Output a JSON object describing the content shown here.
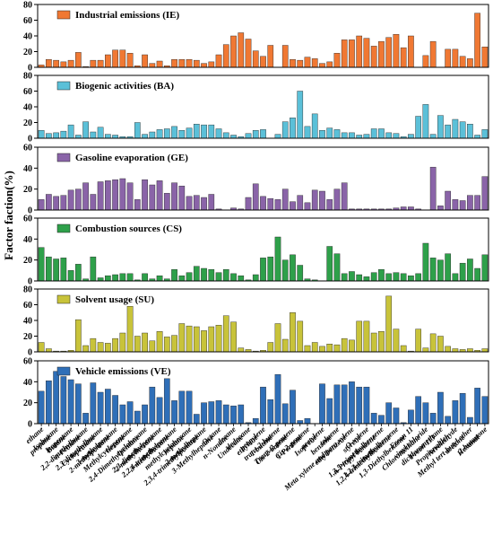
{
  "y_label": "Factor faction(%)",
  "chart_data": [
    {
      "type": "bar",
      "title": "Industrial emissions (IE)",
      "color": "#f07833",
      "ylim": [
        0,
        80
      ],
      "yticks": [
        0,
        20,
        40,
        60,
        80
      ],
      "values": [
        3,
        10,
        9,
        7,
        9,
        19,
        1,
        9,
        9,
        16,
        22,
        22,
        18,
        2,
        16,
        5,
        8,
        2,
        10,
        10,
        10,
        9,
        5,
        7,
        16,
        29,
        40,
        44,
        36,
        21,
        14,
        28,
        0,
        28,
        10,
        9,
        13,
        11,
        5,
        7,
        18,
        35,
        35,
        40,
        37,
        27,
        33,
        38,
        42,
        25,
        40,
        0,
        15,
        33,
        0,
        23,
        23,
        14,
        11,
        69,
        26
      ]
    },
    {
      "type": "bar",
      "title": "Biogenic activities (BA)",
      "color": "#5bc0d8",
      "ylim": [
        0,
        80
      ],
      "yticks": [
        0,
        20,
        40,
        60,
        80
      ],
      "values": [
        10,
        6,
        7,
        9,
        17,
        4,
        21,
        8,
        14,
        5,
        4,
        2,
        2,
        20,
        5,
        8,
        11,
        12,
        15,
        10,
        13,
        18,
        17,
        17,
        12,
        7,
        4,
        2,
        6,
        10,
        11,
        0,
        5,
        21,
        26,
        60,
        15,
        31,
        10,
        13,
        11,
        7,
        7,
        4,
        5,
        12,
        12,
        7,
        6,
        2,
        5,
        28,
        43,
        5,
        29,
        17,
        24,
        21,
        18,
        4,
        11
      ]
    },
    {
      "type": "bar",
      "title": "Gasoline evaporation (GE)",
      "color": "#8a64a8",
      "ylim": [
        0,
        60
      ],
      "yticks": [
        0,
        20,
        40,
        60
      ],
      "values": [
        10,
        15,
        13,
        14,
        19,
        20,
        26,
        15,
        27,
        28,
        29,
        30,
        26,
        10,
        29,
        24,
        28,
        16,
        26,
        23,
        13,
        14,
        12,
        15,
        1,
        0,
        2,
        1,
        12,
        25,
        13,
        11,
        10,
        20,
        8,
        14,
        7,
        19,
        18,
        10,
        20,
        26,
        1,
        1,
        1,
        1,
        1,
        1,
        2,
        3,
        3,
        1,
        0,
        41,
        4,
        18,
        10,
        9,
        14,
        14,
        32
      ]
    },
    {
      "type": "bar",
      "title": "Combustion sources (CS)",
      "color": "#2ea04a",
      "ylim": [
        0,
        60
      ],
      "yticks": [
        0,
        20,
        40,
        60
      ],
      "values": [
        32,
        23,
        21,
        22,
        10,
        16,
        2,
        23,
        3,
        5,
        6,
        7,
        7,
        1,
        7,
        2,
        5,
        2,
        11,
        5,
        8,
        14,
        12,
        11,
        8,
        11,
        7,
        5,
        1,
        6,
        22,
        23,
        42,
        20,
        25,
        15,
        2,
        1,
        0,
        33,
        26,
        7,
        9,
        6,
        4,
        8,
        11,
        7,
        8,
        7,
        5,
        7,
        36,
        22,
        20,
        26,
        7,
        17,
        21,
        12,
        25
      ]
    },
    {
      "type": "bar",
      "title": "Solvent usage (SU)",
      "color": "#c8c33a",
      "ylim": [
        0,
        80
      ],
      "yticks": [
        0,
        20,
        40,
        60,
        80
      ],
      "values": [
        12,
        4,
        1,
        1,
        2,
        41,
        8,
        17,
        12,
        11,
        17,
        24,
        58,
        20,
        24,
        14,
        26,
        19,
        21,
        36,
        33,
        32,
        27,
        32,
        34,
        46,
        38,
        5,
        3,
        1,
        2,
        12,
        36,
        16,
        50,
        39,
        8,
        12,
        7,
        10,
        9,
        17,
        15,
        39,
        39,
        24,
        26,
        71,
        29,
        8,
        1,
        29,
        5,
        23,
        20,
        7,
        4,
        3,
        4,
        2,
        4
      ]
    },
    {
      "type": "bar",
      "title": "Vehicle emissions (VE)",
      "color": "#2f6fb8",
      "ylim": [
        0,
        60
      ],
      "yticks": [
        0,
        20,
        40,
        60
      ],
      "values": [
        31,
        41,
        50,
        45,
        42,
        38,
        10,
        39,
        30,
        33,
        27,
        18,
        21,
        12,
        18,
        35,
        25,
        43,
        22,
        31,
        31,
        9,
        20,
        21,
        22,
        18,
        17,
        18,
        1,
        5,
        35,
        23,
        47,
        19,
        32,
        3,
        5,
        0,
        38,
        24,
        37,
        37,
        40,
        35,
        35,
        10,
        8,
        20,
        15,
        1,
        13,
        26,
        20,
        10,
        30,
        7,
        22,
        29,
        6,
        34,
        26
      ],
      "categories": [
        "ethane",
        "propane",
        "Isobutane",
        "Butane",
        "Isopentane",
        "n-Pentane",
        "2,2-dimethylbutane",
        "Cyclopentane",
        "2,3-dimethylbutane",
        "2-methylpentane",
        "3-methylpentane",
        "hexane",
        "Methylcyclopentane",
        "2,4-Dimethylpentane",
        "cyclohexane",
        "2-methylhexane",
        "2,3-dimethylpentane",
        "3-methylhexane",
        "2,2,4-trimethylpentane",
        "heptane",
        "methylcyclohexane",
        "2,3,4-trimethylpentane",
        "2-methylheptane",
        "3-Methylheptane",
        "Octane",
        "n-Nonane",
        "decane",
        "Undecane",
        "dodecane",
        "ethylene",
        "propylene",
        "1-butene",
        "trans-2-butene",
        "Cis-2-butene",
        "Trans-2-pentene",
        "1-Pentene",
        "Cis-2-pentene",
        "Isoprene",
        "acetylene",
        "benzene",
        "toluene",
        "ethylbenzene",
        "Meta xylene and para xylene",
        "styrene",
        "O-xylene",
        "n-Propyl benzene",
        "1,3,5-trimethylbenzene",
        "1,2,4-trimethylbenzene",
        "1,2,3-trimethylbenzene",
        "1,3-Diethylbenzene",
        "Freon 11",
        "Chloromethane",
        "vinyl chloride",
        "Freon 113",
        "dichloromethane",
        "Acrolein",
        "Propionaldehyde",
        "acetone",
        "Methyl tert-butyl ether",
        "Hexanal",
        "2-butanone"
      ]
    }
  ]
}
